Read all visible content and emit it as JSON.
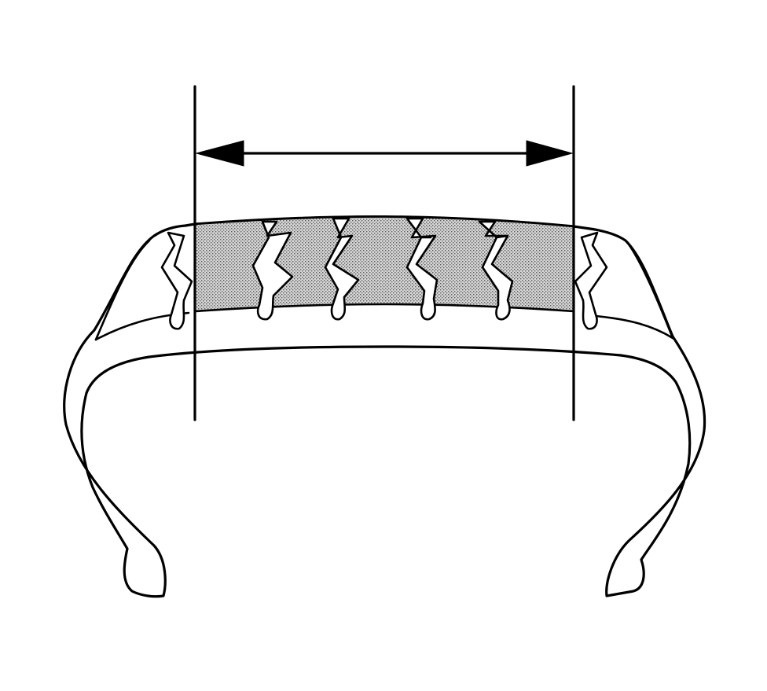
{
  "diagram": {
    "type": "technical-illustration",
    "subject": "tire-cross-section-tread-width",
    "colors": {
      "line": "#000000",
      "background": "#ffffff",
      "tread_dot": "#5a5a5a",
      "tread_base": "#d6d6d6"
    },
    "parts": [
      {
        "name": "tire-carcass"
      },
      {
        "name": "tread-band"
      },
      {
        "name": "tread-grooves",
        "count": 6
      },
      {
        "name": "dimension-extension-lines",
        "count": 2
      },
      {
        "name": "dimension-arrow",
        "style": "double-headed"
      }
    ]
  }
}
